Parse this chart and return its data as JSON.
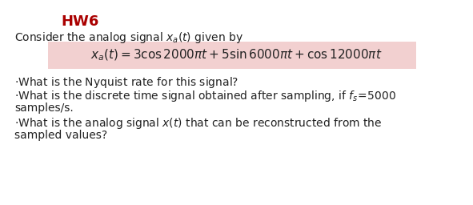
{
  "title": "HW6",
  "title_color": "#aa0000",
  "title_fontsize": 13,
  "bg_color": "#ffffff",
  "text_color": "#222222",
  "eq_box_color": "#f2d0d0",
  "fontsize": 10,
  "eq_fontsize": 11
}
